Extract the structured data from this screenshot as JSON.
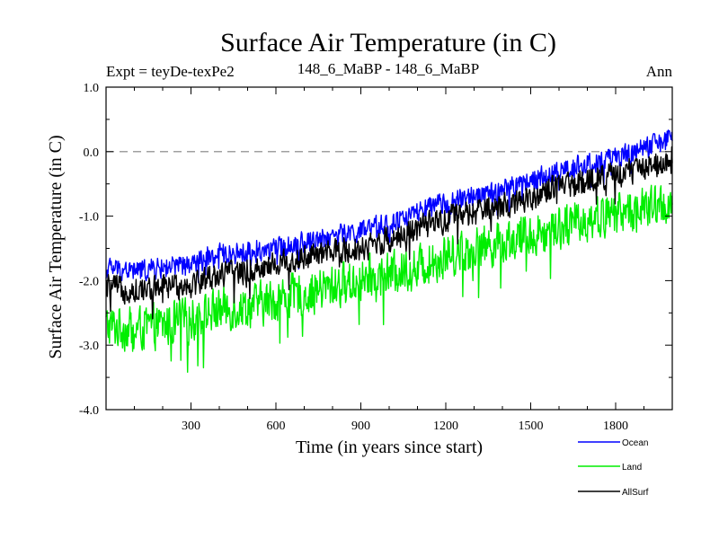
{
  "chart_data": {
    "type": "line",
    "title": "Surface Air Temperature (in C)",
    "subtitle_left": "Expt = teyDe-texPe2",
    "subtitle_center": "148_6_MaBP - 148_6_MaBP",
    "subtitle_right": "Ann",
    "xlabel": "Time (in years since start)",
    "ylabel": "Surface Air Temperature (in C)",
    "xlim": [
      0,
      2000
    ],
    "ylim": [
      -4.0,
      1.0
    ],
    "x_ticks": [
      300,
      600,
      900,
      1200,
      1500,
      1800
    ],
    "x_tick_labels": [
      "300",
      "600",
      "900",
      "1200",
      "1500",
      "1800"
    ],
    "y_ticks": [
      -4.0,
      -3.0,
      -2.0,
      -1.0,
      0.0,
      1.0
    ],
    "y_tick_labels": [
      "-4.0",
      "-3.0",
      "-2.0",
      "-1.0",
      "0.0",
      "1.0"
    ],
    "reference_line": 0.0,
    "legend_position": "bottom-right",
    "series": [
      {
        "name": "Ocean",
        "color": "#0000ff",
        "x": [
          0,
          100,
          200,
          300,
          400,
          500,
          600,
          700,
          800,
          900,
          1000,
          1100,
          1200,
          1300,
          1400,
          1500,
          1600,
          1700,
          1800,
          1900,
          2000
        ],
        "values": [
          -1.8,
          -1.85,
          -1.8,
          -1.75,
          -1.6,
          -1.55,
          -1.5,
          -1.4,
          -1.3,
          -1.25,
          -1.1,
          -0.95,
          -0.8,
          -0.7,
          -0.6,
          -0.45,
          -0.3,
          -0.2,
          -0.1,
          0.05,
          0.2
        ],
        "noise": 0.1
      },
      {
        "name": "Land",
        "color": "#00ee00",
        "x": [
          0,
          100,
          200,
          300,
          400,
          500,
          600,
          700,
          800,
          900,
          1000,
          1100,
          1200,
          1300,
          1400,
          1500,
          1600,
          1700,
          1800,
          1900,
          2000
        ],
        "values": [
          -2.7,
          -2.75,
          -2.7,
          -2.6,
          -2.45,
          -2.4,
          -2.3,
          -2.2,
          -2.1,
          -2.0,
          -1.9,
          -1.8,
          -1.6,
          -1.5,
          -1.4,
          -1.3,
          -1.15,
          -1.05,
          -0.95,
          -0.9,
          -0.8
        ],
        "noise": 0.2
      },
      {
        "name": "AllSurf",
        "color": "#000000",
        "x": [
          0,
          100,
          200,
          300,
          400,
          500,
          600,
          700,
          800,
          900,
          1000,
          1100,
          1200,
          1300,
          1400,
          1500,
          1600,
          1700,
          1800,
          1900,
          2000
        ],
        "values": [
          -2.1,
          -2.15,
          -2.1,
          -2.05,
          -1.9,
          -1.85,
          -1.75,
          -1.65,
          -1.55,
          -1.5,
          -1.35,
          -1.2,
          -1.05,
          -0.95,
          -0.85,
          -0.7,
          -0.55,
          -0.45,
          -0.35,
          -0.25,
          -0.1
        ],
        "noise": 0.12
      }
    ]
  }
}
